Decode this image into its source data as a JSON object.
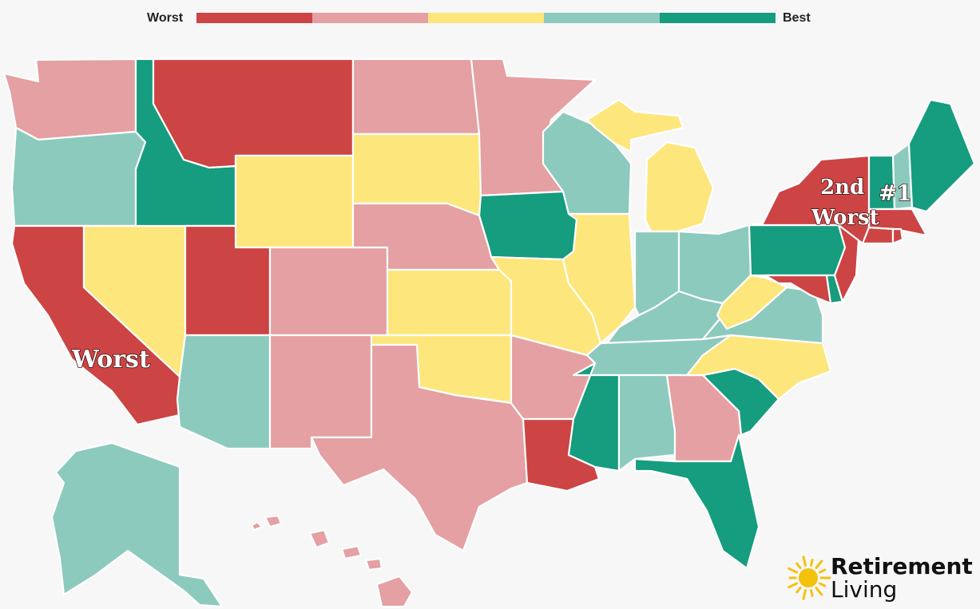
{
  "legend": {
    "left_label": "Worst",
    "right_label": "Best",
    "scale_colors": [
      "#cc4444",
      "#e4a0a2",
      "#fde67c",
      "#8ccabd",
      "#169c7e"
    ]
  },
  "callouts": {
    "worst": "Worst",
    "second_worst_line1": "2nd",
    "second_worst_line2": "Worst",
    "number_one": "#1"
  },
  "brand": {
    "line1": "Retirement",
    "line2": "Living",
    "icon": "sun-icon",
    "icon_color": "#f4c20d"
  },
  "states": {
    "WA": "low",
    "OR": "high",
    "CA": "worst",
    "NV": "mid",
    "ID": "best",
    "MT": "worst",
    "WY": "mid",
    "UT": "worst",
    "AZ": "high",
    "CO": "low",
    "NM": "low",
    "ND": "low",
    "SD": "mid",
    "NE": "low",
    "KS": "mid",
    "OK": "mid",
    "TX": "low",
    "MN": "low",
    "IA": "best",
    "MO": "mid",
    "AR": "low",
    "LA": "worst",
    "WI": "high",
    "IL": "mid",
    "MI": "mid",
    "IN": "high",
    "OH": "high",
    "KY": "high",
    "TN": "high",
    "MS": "best",
    "AL": "high",
    "GA": "low",
    "FL": "best",
    "SC": "best",
    "NC": "mid",
    "VA": "high",
    "WV": "mid",
    "PA": "best",
    "NY": "worst",
    "VT": "best",
    "NH": "high",
    "ME": "best",
    "MA": "worst",
    "RI": "worst",
    "CT": "worst",
    "NJ": "worst",
    "DE": "best",
    "MD": "worst",
    "AK": "high",
    "HI": "low"
  },
  "tier_colors": {
    "worst": "#cc4444",
    "low": "#e4a0a2",
    "mid": "#fde67c",
    "high": "#8ccabd",
    "best": "#169c7e"
  }
}
